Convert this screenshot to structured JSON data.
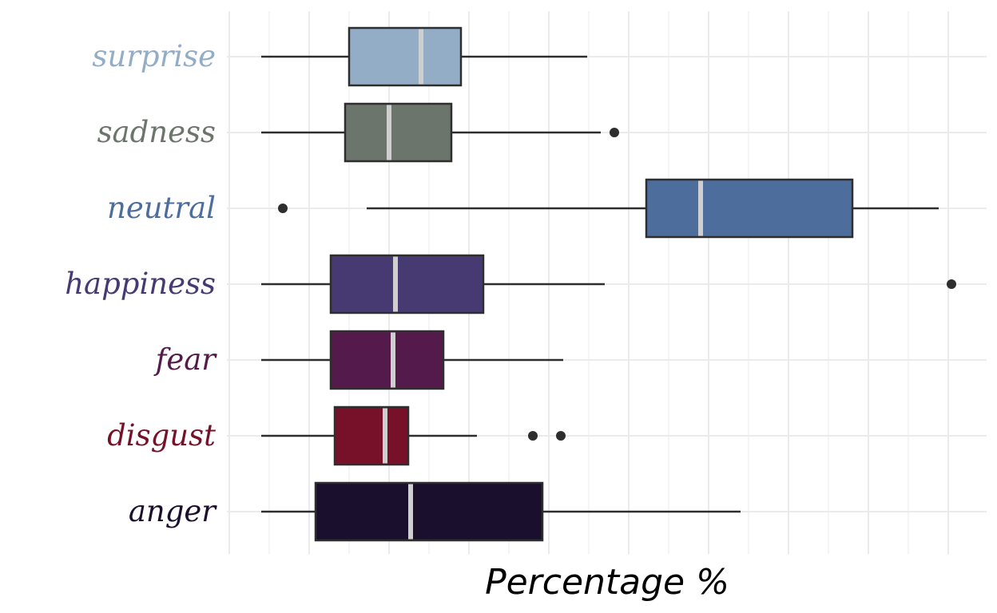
{
  "chart_data": {
    "type": "boxplot",
    "orientation": "horizontal",
    "title": "",
    "xlabel": "Percentage %",
    "ylabel": "",
    "x_tick_labels_shown": false,
    "xlim": [
      0,
      9.5
    ],
    "grid": true,
    "legend": "none",
    "categories": [
      "surprise",
      "sadness",
      "neutral",
      "happiness",
      "fear",
      "disgust",
      "anger"
    ],
    "series": [
      {
        "category": "surprise",
        "whisker_low": 0.4,
        "q1": 1.5,
        "median": 2.4,
        "q3": 2.9,
        "whisker_high": 4.48,
        "outliers": [],
        "color": "#93adc6"
      },
      {
        "category": "sadness",
        "whisker_low": 0.4,
        "q1": 1.45,
        "median": 2.0,
        "q3": 2.78,
        "whisker_high": 4.65,
        "outliers": [
          4.82
        ],
        "color": "#6c756b"
      },
      {
        "category": "neutral",
        "whisker_low": 1.72,
        "q1": 5.22,
        "median": 5.9,
        "q3": 7.8,
        "whisker_high": 8.88,
        "outliers": [
          0.67
        ],
        "color": "#4d6e9c"
      },
      {
        "category": "happiness",
        "whisker_low": 0.4,
        "q1": 1.27,
        "median": 2.08,
        "q3": 3.18,
        "whisker_high": 4.7,
        "outliers": [
          9.04
        ],
        "color": "#473a73"
      },
      {
        "category": "fear",
        "whisker_low": 0.4,
        "q1": 1.27,
        "median": 2.05,
        "q3": 2.68,
        "whisker_high": 4.18,
        "outliers": [],
        "color": "#531a4b"
      },
      {
        "category": "disgust",
        "whisker_low": 0.4,
        "q1": 1.32,
        "median": 1.95,
        "q3": 2.24,
        "whisker_high": 3.1,
        "outliers": [
          3.8,
          4.15
        ],
        "color": "#761129"
      },
      {
        "category": "anger",
        "whisker_low": 0.4,
        "q1": 1.08,
        "median": 2.27,
        "q3": 3.92,
        "whisker_high": 6.4,
        "outliers": [],
        "color": "#1b0f2e"
      }
    ],
    "median_line_color": "#cfcfcf",
    "box_stroke_color": "#2e2e2e",
    "grid_color": "#ebebeb"
  }
}
